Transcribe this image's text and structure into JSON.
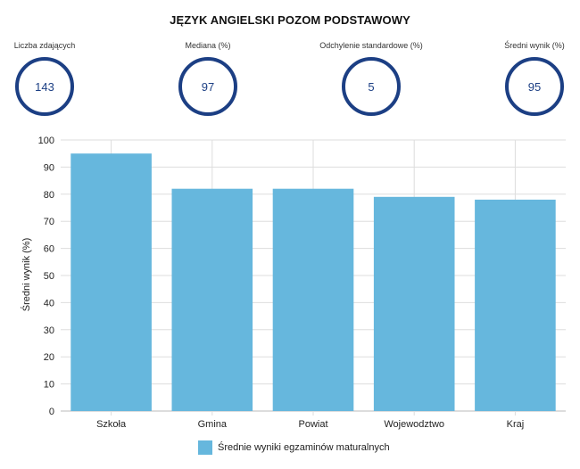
{
  "title": "JĘZYK ANGIELSKI POZOM PODSTAWOWY",
  "stats": [
    {
      "label": "Liczba zdających",
      "value": "143"
    },
    {
      "label": "Mediana (%)",
      "value": "97"
    },
    {
      "label": "Odchylenie standardowe (%)",
      "value": "5"
    },
    {
      "label": "Średni wynik (%)",
      "value": "95"
    }
  ],
  "colors": {
    "bar": "#66b7dd",
    "circle": "#1c3f84",
    "grid": "#dddddd"
  },
  "chart_data": {
    "type": "bar",
    "title": "",
    "xlabel": "",
    "ylabel": "Średni wynik (%)",
    "categories": [
      "Szkoła",
      "Gmina",
      "Powiat",
      "Wojewodztwo",
      "Kraj"
    ],
    "series": [
      {
        "name": "Średnie wyniki egzaminów maturalnych",
        "values": [
          95,
          82,
          82,
          79,
          78
        ]
      }
    ],
    "ylim": [
      0,
      100
    ],
    "yticks": [
      0,
      10,
      20,
      30,
      40,
      50,
      60,
      70,
      80,
      90,
      100
    ],
    "grid": true,
    "legend_position": "bottom"
  }
}
